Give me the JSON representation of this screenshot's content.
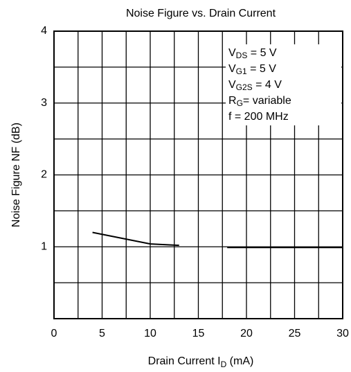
{
  "chart_data": {
    "type": "line",
    "title": "Noise Figure vs. Drain Current",
    "xlabel": [
      "Drain Current  I",
      "D",
      "  (mA)"
    ],
    "ylabel": "Noise Figure  NF  (dB)",
    "xlim": [
      0,
      30
    ],
    "xticks": [
      0,
      5,
      10,
      15,
      20,
      25,
      30
    ],
    "xminor": [
      2.5,
      7.5,
      12.5,
      17.5,
      22.5,
      27.5
    ],
    "ylim": [
      0,
      4
    ],
    "yticks": [
      1,
      2,
      3,
      4
    ],
    "yminor": [
      0.5,
      1.5,
      2.5,
      3.5
    ],
    "grid": true,
    "series": [
      {
        "color": "#000000",
        "x": [
          4,
          10,
          13
        ],
        "values": [
          1.2,
          1.04,
          1.02
        ]
      },
      {
        "color": "#000000",
        "x": [
          18,
          30
        ],
        "values": [
          0.99,
          0.99
        ]
      }
    ],
    "annotations": [
      [
        "V",
        "DS",
        " = 5 V"
      ],
      [
        "V",
        "G1",
        " = 5 V"
      ],
      [
        "V",
        "G2S",
        " = 4 V"
      ],
      [
        "R",
        "G",
        "= variable"
      ],
      [
        "f = 200 MHz"
      ]
    ]
  }
}
